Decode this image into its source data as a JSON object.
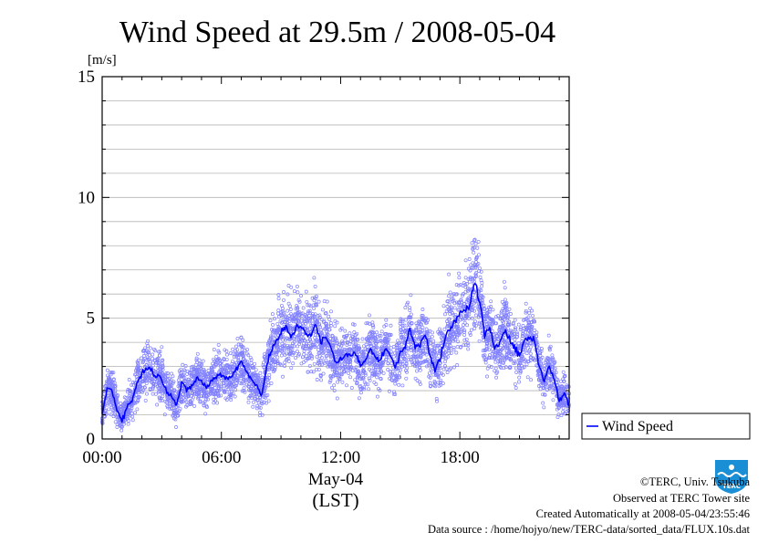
{
  "chart_data": {
    "type": "scatter",
    "title": "Wind Speed at 29.5m / 2008-05-04",
    "ylabel": "[m/s]",
    "xlabel_line1": "May-04",
    "xlabel_line2": "(LST)",
    "ylim": [
      0,
      15
    ],
    "xlim_hours": [
      0,
      23.5
    ],
    "yticks": [
      {
        "value": 0,
        "label": "0"
      },
      {
        "value": 5,
        "label": "5"
      },
      {
        "value": 10,
        "label": "10"
      },
      {
        "value": 15,
        "label": "15"
      }
    ],
    "xticks": [
      {
        "value": 0,
        "label": "00:00"
      },
      {
        "value": 6,
        "label": "06:00"
      },
      {
        "value": 12,
        "label": "12:00"
      },
      {
        "value": 18,
        "label": "18:00"
      }
    ],
    "grid": true,
    "legend_position": "right",
    "series": [
      {
        "name": "Wind Speed",
        "style": "line with scattered 10-s samples",
        "line_color": "#0000ff",
        "point_color": "#8080ff",
        "x": [
          0.0,
          0.25,
          0.5,
          0.75,
          1.0,
          1.25,
          1.5,
          1.75,
          2.0,
          2.25,
          2.5,
          2.75,
          3.0,
          3.25,
          3.5,
          3.75,
          4.0,
          4.25,
          4.5,
          4.75,
          5.0,
          5.25,
          5.5,
          5.75,
          6.0,
          6.25,
          6.5,
          6.75,
          7.0,
          7.25,
          7.5,
          7.75,
          8.0,
          8.25,
          8.5,
          8.75,
          9.0,
          9.25,
          9.5,
          9.75,
          10.0,
          10.25,
          10.5,
          10.75,
          11.0,
          11.25,
          11.5,
          11.75,
          12.0,
          12.25,
          12.5,
          12.75,
          13.0,
          13.25,
          13.5,
          13.75,
          14.0,
          14.25,
          14.5,
          14.75,
          15.0,
          15.25,
          15.5,
          15.75,
          16.0,
          16.25,
          16.5,
          16.75,
          17.0,
          17.25,
          17.5,
          17.75,
          18.0,
          18.25,
          18.5,
          18.75,
          19.0,
          19.25,
          19.5,
          19.75,
          20.0,
          20.25,
          20.5,
          20.75,
          21.0,
          21.25,
          21.5,
          21.75,
          22.0,
          22.25,
          22.5,
          22.75,
          23.0,
          23.25,
          23.5
        ],
        "y": [
          1.0,
          2.1,
          2.0,
          1.2,
          0.8,
          1.3,
          1.6,
          2.3,
          2.7,
          3.0,
          2.8,
          2.6,
          2.5,
          2.0,
          1.8,
          1.4,
          2.3,
          2.0,
          2.2,
          2.5,
          2.4,
          2.1,
          2.4,
          2.6,
          2.7,
          2.5,
          2.6,
          2.9,
          3.2,
          2.8,
          2.5,
          2.3,
          1.8,
          2.8,
          3.7,
          4.0,
          4.4,
          4.6,
          4.2,
          4.6,
          4.7,
          4.4,
          4.3,
          4.7,
          4.0,
          4.2,
          3.8,
          3.2,
          3.3,
          3.5,
          3.4,
          3.6,
          3.0,
          3.3,
          3.8,
          3.4,
          3.2,
          3.8,
          3.4,
          3.0,
          3.5,
          3.9,
          4.5,
          3.8,
          3.9,
          4.4,
          3.5,
          2.9,
          3.3,
          4.1,
          4.6,
          4.8,
          5.2,
          5.3,
          5.6,
          6.5,
          5.7,
          4.3,
          4.5,
          3.8,
          4.0,
          4.6,
          4.1,
          3.8,
          3.4,
          4.1,
          4.2,
          4.1,
          3.0,
          2.4,
          3.1,
          2.4,
          1.6,
          1.9,
          1.4
        ]
      }
    ]
  },
  "legend_label": "Wind Speed",
  "footer": {
    "copyright": "©TERC, Univ. Tsukuba",
    "observed": "Observed at TERC Tower site",
    "created": "Created Automatically at 2008-05-04/23:55:46",
    "source": "Data source : /home/hojyo/new/TERC-data/sorted_data/FLUX.10s.dat"
  },
  "logo": {
    "text": "TERC"
  }
}
